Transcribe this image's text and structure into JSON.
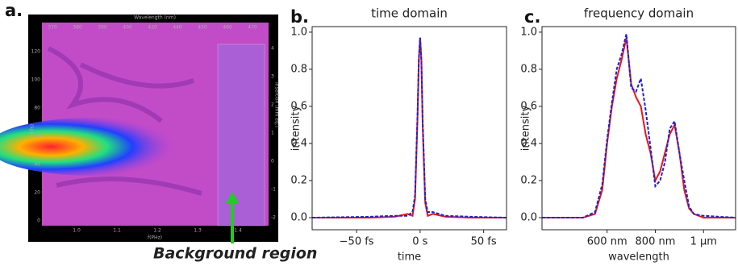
{
  "panel_labels": [
    "a.",
    "b.",
    "c."
  ],
  "annotation": "Background region",
  "spectrogram": {
    "top_label": "Wavelength (nm)",
    "top_ticks": [
      "370",
      "380",
      "390",
      "400",
      "420",
      "440",
      "450",
      "460",
      "470"
    ],
    "bottom_label": "f(PHz)",
    "bottom_ticks": [
      "1.0",
      "1.1",
      "1.2",
      "1.3",
      "1.4"
    ],
    "left_label": "t(fs)",
    "left_ticks": [
      "120",
      "100",
      "80",
      "60",
      "40",
      "20",
      "0"
    ],
    "right_label": "Insertion (mm eq.)",
    "right_ticks": [
      "4",
      "3",
      "2",
      "1",
      "0",
      "-1",
      "-2"
    ]
  },
  "chart_data": [
    {
      "type": "line",
      "title": "time domain",
      "xlabel": "time",
      "ylabel": "intensity",
      "x": [
        -85,
        -40,
        -20,
        -10,
        -6,
        -4,
        -2,
        -1,
        0,
        1,
        2,
        4,
        6,
        10,
        20,
        40,
        68
      ],
      "series": [
        {
          "color": "#e8161b",
          "dash": false,
          "values": [
            0,
            0,
            0.005,
            0.02,
            0.01,
            0.1,
            0.55,
            0.85,
            0.97,
            0.85,
            0.5,
            0.08,
            0.01,
            0.02,
            0.005,
            0,
            0
          ]
        },
        {
          "color": "#1f1fd8",
          "dash": true,
          "values": [
            0,
            0.005,
            0.01,
            0.01,
            0.03,
            0.12,
            0.57,
            0.86,
            0.97,
            0.84,
            0.52,
            0.1,
            0.03,
            0.03,
            0.01,
            0.005,
            0
          ]
        }
      ],
      "xlim": [
        -85,
        68
      ],
      "ylim": [
        -0.065,
        1.03
      ],
      "xticks": [
        {
          "value": -50,
          "label": "−50 fs"
        },
        {
          "value": 0,
          "label": "0 s"
        },
        {
          "value": 50,
          "label": "50 fs"
        }
      ],
      "yticks": [
        {
          "value": 0,
          "label": "0.0"
        },
        {
          "value": 0.2,
          "label": "0.2"
        },
        {
          "value": 0.4,
          "label": "0.4"
        },
        {
          "value": 0.6,
          "label": "0.6"
        },
        {
          "value": 0.8,
          "label": "0.8"
        },
        {
          "value": 1,
          "label": "1.0"
        }
      ]
    },
    {
      "type": "line",
      "title": "frequency domain",
      "xlabel": "wavelength",
      "ylabel": "intensity",
      "x": [
        330,
        500,
        550,
        580,
        600,
        620,
        640,
        660,
        680,
        700,
        720,
        740,
        760,
        780,
        800,
        820,
        840,
        860,
        880,
        900,
        920,
        940,
        960,
        1000,
        1133
      ],
      "series": [
        {
          "color": "#e8161b",
          "dash": false,
          "values": [
            0,
            0,
            0.02,
            0.15,
            0.4,
            0.6,
            0.75,
            0.85,
            0.97,
            0.72,
            0.65,
            0.6,
            0.45,
            0.35,
            0.2,
            0.25,
            0.35,
            0.45,
            0.5,
            0.35,
            0.15,
            0.05,
            0.02,
            0,
            0
          ]
        },
        {
          "color": "#1f1fd8",
          "dash": true,
          "values": [
            0,
            0,
            0.03,
            0.18,
            0.42,
            0.62,
            0.8,
            0.88,
            0.99,
            0.7,
            0.68,
            0.75,
            0.58,
            0.38,
            0.17,
            0.2,
            0.3,
            0.48,
            0.52,
            0.35,
            0.2,
            0.06,
            0.02,
            0.01,
            0
          ]
        }
      ],
      "xlim": [
        330,
        1133
      ],
      "ylim": [
        -0.065,
        1.03
      ],
      "xticks": [
        {
          "value": 600,
          "label": "600 nm"
        },
        {
          "value": 800,
          "label": "800 nm"
        },
        {
          "value": 1000,
          "label": "1 μm"
        }
      ],
      "yticks": [
        {
          "value": 0,
          "label": "0.0"
        },
        {
          "value": 0.2,
          "label": "0.2"
        },
        {
          "value": 0.4,
          "label": "0.4"
        },
        {
          "value": 0.6,
          "label": "0.6"
        },
        {
          "value": 0.8,
          "label": "0.8"
        },
        {
          "value": 1,
          "label": "1.0"
        }
      ]
    }
  ]
}
